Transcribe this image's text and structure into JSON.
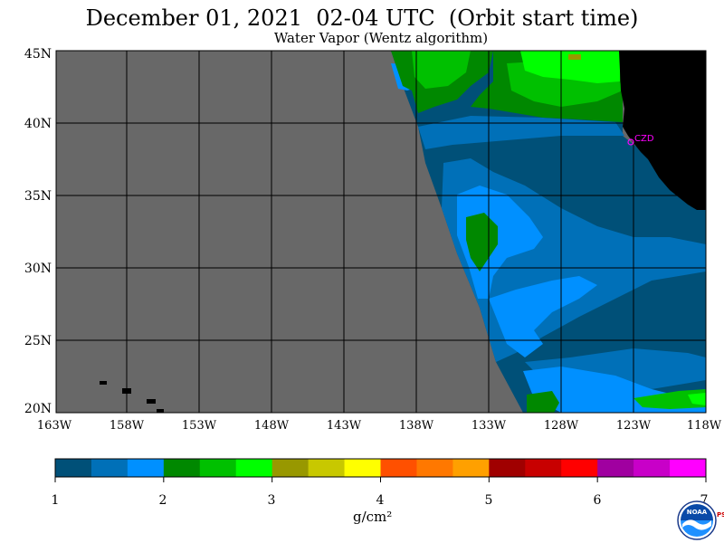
{
  "header": {
    "title": "December 01, 2021  02-04 UTC  (Orbit start time)",
    "subtitle": "Water Vapor (Wentz algorithm)"
  },
  "map": {
    "lat_labels": [
      "45N",
      "40N",
      "35N",
      "30N",
      "25N",
      "20N"
    ],
    "lon_labels": [
      "163W",
      "158W",
      "153W",
      "148W",
      "143W",
      "138W",
      "133W",
      "128W",
      "123W",
      "118W"
    ],
    "station_label": "CZD",
    "colors": {
      "no_data": "#686868",
      "land": "#000000",
      "station": "#ff00ff"
    }
  },
  "colorbar": {
    "tick_labels": [
      "1",
      "2",
      "3",
      "4",
      "5",
      "6",
      "7"
    ],
    "unit": "g/cm²",
    "colors": [
      "#005078",
      "#0070b8",
      "#0090ff",
      "#008800",
      "#00c000",
      "#00ff00",
      "#989800",
      "#c8c800",
      "#ffff00",
      "#ff5000",
      "#ff7800",
      "#ffa000",
      "#a00000",
      "#c80000",
      "#ff0000",
      "#a000a0",
      "#c800c8",
      "#ff00ff"
    ]
  },
  "logo": {
    "text": "NOAA",
    "side_text": "PSL"
  }
}
